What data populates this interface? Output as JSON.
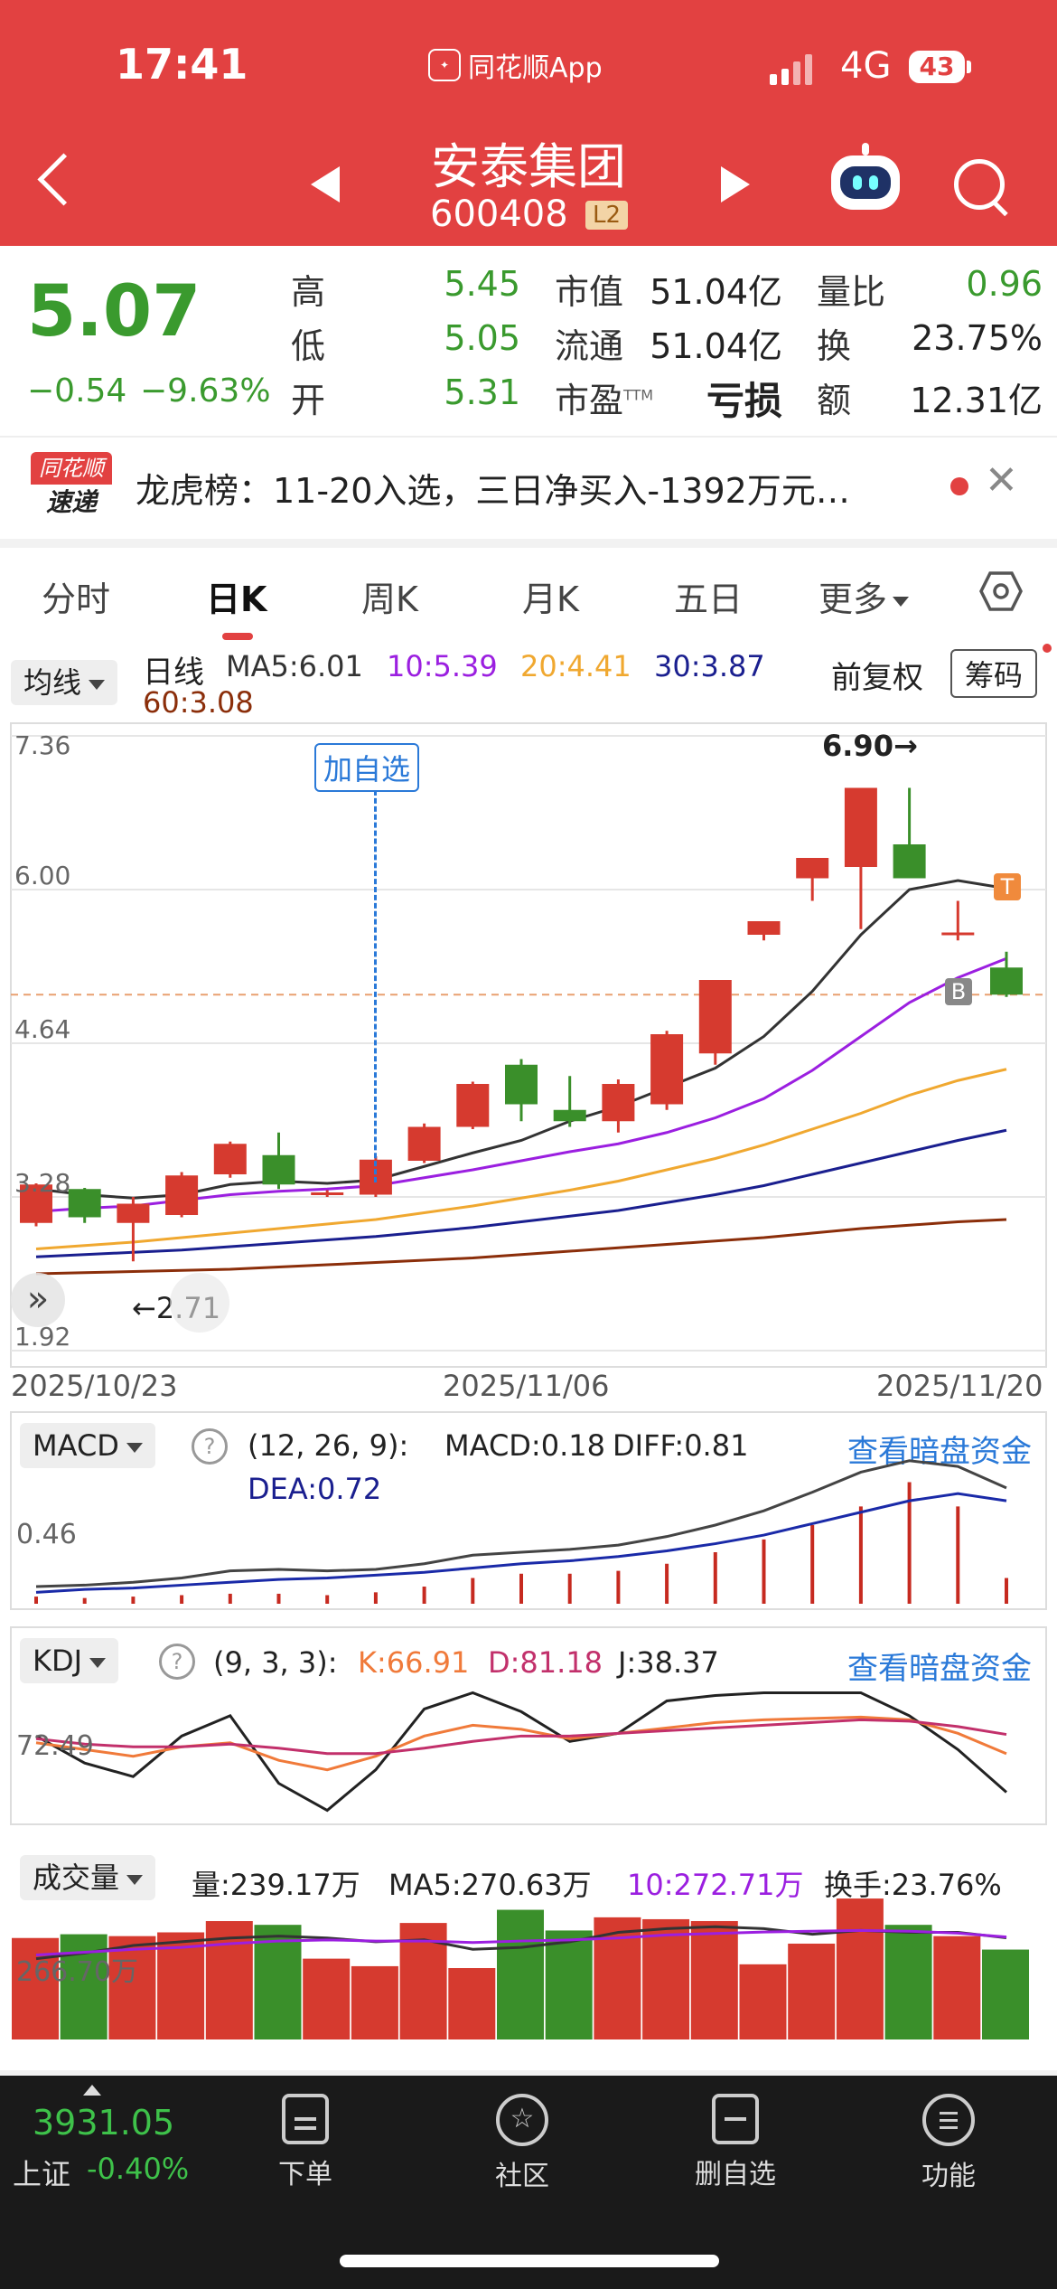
{
  "status_bar": {
    "time": "17:41",
    "app_name": "同花顺App",
    "network": "4G",
    "battery": "43"
  },
  "header": {
    "stock_name": "安泰集团",
    "stock_code": "600408",
    "level_badge": "L2"
  },
  "quote": {
    "price": "5.07",
    "change": "−0.54",
    "change_pct": "−9.63%",
    "high_label": "高",
    "high": "5.45",
    "low_label": "低",
    "low": "5.05",
    "open_label": "开",
    "open": "5.31",
    "mktcap_label": "市值",
    "mktcap": "51.04亿",
    "float_label": "流通",
    "float": "51.04亿",
    "pe_label": "市盈",
    "pe_sup": "TTM",
    "pe": "亏损",
    "vol_ratio_label": "量比",
    "vol_ratio": "0.96",
    "turnover_label": "换",
    "turnover": "23.75%",
    "amount_label": "额",
    "amount": "12.31亿"
  },
  "news_banner": {
    "badge_top": "同花顺",
    "badge_bottom": "速递",
    "text": "龙虎榜：11-20入选，三日净买入-1392万元…"
  },
  "tabs": [
    "分时",
    "日K",
    "周K",
    "月K",
    "五日",
    "更多"
  ],
  "kline": {
    "ma_selector": "均线",
    "period_label": "日线",
    "ma5": "MA5:6.01",
    "ma10": "10:5.39",
    "ma20": "20:4.41",
    "ma30": "30:3.87",
    "ma60": "60:3.08",
    "adjust_label": "前复权",
    "chips_button": "筹码",
    "add_watchlist_tag": "加自选",
    "high_marker": "6.90→",
    "low_marker": "←2.71",
    "y_ticks": [
      "7.36",
      "6.00",
      "4.64",
      "3.28",
      "1.92"
    ],
    "dates": [
      "2025/10/23",
      "2025/11/06",
      "2025/11/20"
    ],
    "buy_tag": "B",
    "trade_tag": "T"
  },
  "macd": {
    "selector": "MACD",
    "params": "(12, 26, 9):",
    "macd": "MACD:0.18",
    "diff": "DIFF:0.81",
    "dea": "DEA:0.72",
    "y_tick": "0.46",
    "link": "查看暗盘资金"
  },
  "kdj": {
    "selector": "KDJ",
    "params": "(9, 3, 3):",
    "k": "K:66.91",
    "d": "D:81.18",
    "j": "J:38.37",
    "y_tick": "72.49",
    "link": "查看暗盘资金"
  },
  "volume": {
    "selector": "成交量",
    "vol": "量:239.17万",
    "ma5": "MA5:270.63万",
    "ma10": "10:272.71万",
    "turnover": "换手:23.76%",
    "y_tick": "266.70万"
  },
  "bottom_nav": {
    "index_value": "3931.05",
    "index_name": "上证",
    "index_change": "-0.40%",
    "items": [
      "下单",
      "社区",
      "删自选",
      "功能"
    ]
  },
  "colors": {
    "up": "#d63a2f",
    "down": "#3a8f2a",
    "brand": "#e24141",
    "ma5": "#333333",
    "ma10": "#9b1fe0",
    "ma20": "#f0a830",
    "ma30": "#1a1f8f",
    "ma60": "#8b2e0a"
  },
  "chart_data": {
    "type": "candlestick",
    "dates_shown": [
      "2025/10/23",
      "2025/11/06",
      "2025/11/20"
    ],
    "ylim": [
      1.92,
      7.36
    ],
    "candles": [
      {
        "o": 3.05,
        "c": 3.39,
        "h": 3.4,
        "l": 3.02
      },
      {
        "o": 3.35,
        "c": 3.1,
        "h": 3.36,
        "l": 3.05
      },
      {
        "o": 3.05,
        "c": 3.22,
        "h": 3.28,
        "l": 2.71
      },
      {
        "o": 3.12,
        "c": 3.47,
        "h": 3.5,
        "l": 3.1
      },
      {
        "o": 3.48,
        "c": 3.75,
        "h": 3.77,
        "l": 3.45
      },
      {
        "o": 3.65,
        "c": 3.39,
        "h": 3.85,
        "l": 3.35
      },
      {
        "o": 3.3,
        "c": 3.32,
        "h": 3.34,
        "l": 3.28
      },
      {
        "o": 3.3,
        "c": 3.61,
        "h": 3.64,
        "l": 3.28
      },
      {
        "o": 3.6,
        "c": 3.9,
        "h": 3.93,
        "l": 3.58
      },
      {
        "o": 3.9,
        "c": 4.28,
        "h": 4.3,
        "l": 3.88
      },
      {
        "o": 4.45,
        "c": 4.1,
        "h": 4.5,
        "l": 3.95
      },
      {
        "o": 4.05,
        "c": 3.95,
        "h": 4.35,
        "l": 3.9
      },
      {
        "o": 3.95,
        "c": 4.28,
        "h": 4.32,
        "l": 3.85
      },
      {
        "o": 4.1,
        "c": 4.72,
        "h": 4.75,
        "l": 4.05
      },
      {
        "o": 4.55,
        "c": 5.2,
        "h": 5.2,
        "l": 4.45
      },
      {
        "o": 5.6,
        "c": 5.72,
        "h": 5.72,
        "l": 5.55
      },
      {
        "o": 6.1,
        "c": 6.28,
        "h": 6.28,
        "l": 5.9
      },
      {
        "o": 6.2,
        "c": 6.9,
        "h": 6.9,
        "l": 5.65
      },
      {
        "o": 6.4,
        "c": 6.1,
        "h": 6.9,
        "l": 6.1
      },
      {
        "o": 5.62,
        "c": 5.62,
        "h": 5.9,
        "l": 5.55
      },
      {
        "o": 5.31,
        "c": 5.07,
        "h": 5.45,
        "l": 5.05
      }
    ],
    "ma5": [
      3.35,
      3.3,
      3.27,
      3.3,
      3.39,
      3.42,
      3.4,
      3.43,
      3.55,
      3.67,
      3.78,
      3.95,
      4.08,
      4.25,
      4.42,
      4.7,
      5.1,
      5.6,
      6.0,
      6.08,
      6.01
    ],
    "ma10": [
      3.15,
      3.18,
      3.2,
      3.25,
      3.3,
      3.33,
      3.35,
      3.38,
      3.45,
      3.52,
      3.6,
      3.68,
      3.75,
      3.85,
      3.98,
      4.15,
      4.4,
      4.7,
      5.0,
      5.22,
      5.39
    ],
    "ma20": [
      2.82,
      2.85,
      2.88,
      2.92,
      2.96,
      3.0,
      3.04,
      3.08,
      3.14,
      3.2,
      3.27,
      3.34,
      3.42,
      3.52,
      3.62,
      3.74,
      3.88,
      4.02,
      4.18,
      4.31,
      4.41
    ],
    "ma30": [
      2.75,
      2.77,
      2.79,
      2.81,
      2.84,
      2.87,
      2.9,
      2.93,
      2.97,
      3.01,
      3.06,
      3.11,
      3.16,
      3.23,
      3.3,
      3.38,
      3.48,
      3.58,
      3.68,
      3.78,
      3.87
    ],
    "ma60": [
      2.6,
      2.61,
      2.62,
      2.63,
      2.64,
      2.66,
      2.68,
      2.7,
      2.72,
      2.74,
      2.77,
      2.8,
      2.83,
      2.86,
      2.89,
      2.92,
      2.96,
      3.0,
      3.03,
      3.06,
      3.08
    ],
    "macd_bars": [
      0.05,
      0.04,
      0.05,
      0.06,
      0.07,
      0.07,
      0.06,
      0.08,
      0.12,
      0.18,
      0.21,
      0.21,
      0.23,
      0.28,
      0.36,
      0.45,
      0.55,
      0.68,
      0.85,
      0.68,
      0.18
    ],
    "diff": [
      0.12,
      0.13,
      0.15,
      0.18,
      0.23,
      0.24,
      0.23,
      0.24,
      0.28,
      0.34,
      0.36,
      0.38,
      0.41,
      0.47,
      0.55,
      0.65,
      0.78,
      0.92,
      1.0,
      0.96,
      0.81
    ],
    "dea": [
      0.08,
      0.1,
      0.11,
      0.13,
      0.15,
      0.17,
      0.18,
      0.2,
      0.22,
      0.25,
      0.28,
      0.3,
      0.33,
      0.37,
      0.42,
      0.48,
      0.56,
      0.64,
      0.72,
      0.77,
      0.72
    ],
    "k": [
      75,
      70,
      65,
      72,
      75,
      62,
      55,
      65,
      80,
      88,
      85,
      78,
      82,
      86,
      90,
      92,
      93,
      94,
      92,
      82,
      66.91
    ],
    "d": [
      78,
      74,
      72,
      72,
      74,
      71,
      67,
      67,
      71,
      76,
      80,
      80,
      82,
      84,
      86,
      88,
      90,
      92,
      91,
      87,
      81.18
    ],
    "j": [
      80,
      60,
      50,
      80,
      95,
      45,
      25,
      55,
      100,
      112,
      98,
      76,
      82,
      106,
      110,
      112,
      112,
      112,
      95,
      70,
      38.37
    ],
    "volume": [
      270,
      280,
      275,
      285,
      315,
      305,
      215,
      195,
      310,
      190,
      345,
      290,
      325,
      320,
      315,
      200,
      255,
      375,
      305,
      275,
      239.17
    ],
    "vol_ma5": [
      215,
      230,
      250,
      260,
      270,
      275,
      270,
      260,
      265,
      240,
      245,
      260,
      285,
      295,
      300,
      295,
      280,
      290,
      285,
      285,
      270.63
    ],
    "vol_ma10": [
      225,
      232,
      240,
      245,
      255,
      262,
      265,
      262,
      262,
      258,
      262,
      265,
      270,
      278,
      282,
      286,
      288,
      290,
      288,
      283,
      272.71
    ]
  }
}
